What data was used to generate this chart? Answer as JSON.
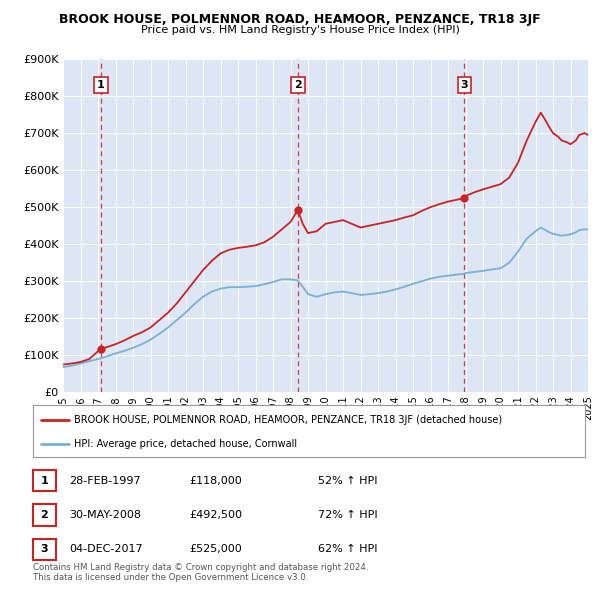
{
  "title": "BROOK HOUSE, POLMENNOR ROAD, HEAMOOR, PENZANCE, TR18 3JF",
  "subtitle": "Price paid vs. HM Land Registry's House Price Index (HPI)",
  "plot_bg_color": "#dce6f5",
  "red_line_color": "#cc2222",
  "blue_line_color": "#7ab0d4",
  "red_line_label": "BROOK HOUSE, POLMENNOR ROAD, HEAMOOR, PENZANCE, TR18 3JF (detached house)",
  "blue_line_label": "HPI: Average price, detached house, Cornwall",
  "sales": [
    {
      "num": 1,
      "date": "28-FEB-1997",
      "price": 118000,
      "price_str": "£118,000",
      "pct": "52% ↑ HPI",
      "year": 1997.17
    },
    {
      "num": 2,
      "date": "30-MAY-2008",
      "price": 492500,
      "price_str": "£492,500",
      "pct": "72% ↑ HPI",
      "year": 2008.42
    },
    {
      "num": 3,
      "date": "04-DEC-2017",
      "price": 525000,
      "price_str": "£525,000",
      "pct": "62% ↑ HPI",
      "year": 2017.92
    }
  ],
  "footer_line1": "Contains HM Land Registry data © Crown copyright and database right 2024.",
  "footer_line2": "This data is licensed under the Open Government Licence v3.0.",
  "ylim": [
    0,
    900000
  ],
  "xlim": [
    1995,
    2025
  ],
  "yticks": [
    0,
    100000,
    200000,
    300000,
    400000,
    500000,
    600000,
    700000,
    800000,
    900000
  ],
  "ytick_labels": [
    "£0",
    "£100K",
    "£200K",
    "£300K",
    "£400K",
    "£500K",
    "£600K",
    "£700K",
    "£800K",
    "£900K"
  ],
  "xticks": [
    1995,
    1996,
    1997,
    1998,
    1999,
    2000,
    2001,
    2002,
    2003,
    2004,
    2005,
    2006,
    2007,
    2008,
    2009,
    2010,
    2011,
    2012,
    2013,
    2014,
    2015,
    2016,
    2017,
    2018,
    2019,
    2020,
    2021,
    2022,
    2023,
    2024,
    2025
  ],
  "red_anchors": [
    [
      1995.0,
      75000
    ],
    [
      1995.5,
      78000
    ],
    [
      1996.0,
      82000
    ],
    [
      1996.5,
      90000
    ],
    [
      1997.17,
      118000
    ],
    [
      1997.5,
      122000
    ],
    [
      1998.0,
      130000
    ],
    [
      1998.5,
      140000
    ],
    [
      1999.0,
      152000
    ],
    [
      1999.5,
      162000
    ],
    [
      2000.0,
      175000
    ],
    [
      2000.5,
      195000
    ],
    [
      2001.0,
      215000
    ],
    [
      2001.5,
      240000
    ],
    [
      2002.0,
      270000
    ],
    [
      2002.5,
      300000
    ],
    [
      2003.0,
      330000
    ],
    [
      2003.5,
      355000
    ],
    [
      2004.0,
      375000
    ],
    [
      2004.5,
      385000
    ],
    [
      2005.0,
      390000
    ],
    [
      2005.5,
      393000
    ],
    [
      2006.0,
      397000
    ],
    [
      2006.5,
      405000
    ],
    [
      2007.0,
      420000
    ],
    [
      2007.5,
      440000
    ],
    [
      2008.0,
      460000
    ],
    [
      2008.42,
      492500
    ],
    [
      2008.7,
      455000
    ],
    [
      2009.0,
      430000
    ],
    [
      2009.5,
      435000
    ],
    [
      2010.0,
      455000
    ],
    [
      2010.5,
      460000
    ],
    [
      2011.0,
      465000
    ],
    [
      2011.5,
      455000
    ],
    [
      2012.0,
      445000
    ],
    [
      2012.5,
      450000
    ],
    [
      2013.0,
      455000
    ],
    [
      2013.5,
      460000
    ],
    [
      2014.0,
      465000
    ],
    [
      2014.5,
      472000
    ],
    [
      2015.0,
      478000
    ],
    [
      2015.5,
      490000
    ],
    [
      2016.0,
      500000
    ],
    [
      2016.5,
      508000
    ],
    [
      2017.0,
      515000
    ],
    [
      2017.5,
      520000
    ],
    [
      2017.92,
      525000
    ],
    [
      2018.0,
      530000
    ],
    [
      2018.5,
      540000
    ],
    [
      2019.0,
      548000
    ],
    [
      2019.5,
      555000
    ],
    [
      2020.0,
      562000
    ],
    [
      2020.5,
      580000
    ],
    [
      2021.0,
      620000
    ],
    [
      2021.5,
      680000
    ],
    [
      2022.0,
      730000
    ],
    [
      2022.3,
      755000
    ],
    [
      2022.5,
      740000
    ],
    [
      2022.8,
      715000
    ],
    [
      2023.0,
      700000
    ],
    [
      2023.3,
      690000
    ],
    [
      2023.5,
      680000
    ],
    [
      2023.8,
      675000
    ],
    [
      2024.0,
      670000
    ],
    [
      2024.3,
      680000
    ],
    [
      2024.5,
      695000
    ],
    [
      2024.8,
      700000
    ],
    [
      2025.0,
      695000
    ]
  ],
  "blue_anchors": [
    [
      1995.0,
      68000
    ],
    [
      1995.5,
      72000
    ],
    [
      1996.0,
      78000
    ],
    [
      1996.5,
      84000
    ],
    [
      1997.0,
      90000
    ],
    [
      1997.5,
      97000
    ],
    [
      1998.0,
      105000
    ],
    [
      1998.5,
      112000
    ],
    [
      1999.0,
      120000
    ],
    [
      1999.5,
      130000
    ],
    [
      2000.0,
      142000
    ],
    [
      2000.5,
      158000
    ],
    [
      2001.0,
      175000
    ],
    [
      2001.5,
      195000
    ],
    [
      2002.0,
      215000
    ],
    [
      2002.5,
      238000
    ],
    [
      2003.0,
      258000
    ],
    [
      2003.5,
      272000
    ],
    [
      2004.0,
      280000
    ],
    [
      2004.5,
      284000
    ],
    [
      2005.0,
      284000
    ],
    [
      2005.5,
      285000
    ],
    [
      2006.0,
      287000
    ],
    [
      2006.5,
      292000
    ],
    [
      2007.0,
      298000
    ],
    [
      2007.5,
      305000
    ],
    [
      2008.0,
      305000
    ],
    [
      2008.42,
      302000
    ],
    [
      2008.7,
      285000
    ],
    [
      2009.0,
      265000
    ],
    [
      2009.5,
      258000
    ],
    [
      2010.0,
      265000
    ],
    [
      2010.5,
      270000
    ],
    [
      2011.0,
      272000
    ],
    [
      2011.5,
      268000
    ],
    [
      2012.0,
      263000
    ],
    [
      2012.5,
      265000
    ],
    [
      2013.0,
      268000
    ],
    [
      2013.5,
      272000
    ],
    [
      2014.0,
      278000
    ],
    [
      2014.5,
      285000
    ],
    [
      2015.0,
      293000
    ],
    [
      2015.5,
      300000
    ],
    [
      2016.0,
      307000
    ],
    [
      2016.5,
      312000
    ],
    [
      2017.0,
      315000
    ],
    [
      2017.5,
      318000
    ],
    [
      2017.92,
      320000
    ],
    [
      2018.0,
      322000
    ],
    [
      2018.5,
      325000
    ],
    [
      2019.0,
      328000
    ],
    [
      2019.5,
      332000
    ],
    [
      2020.0,
      335000
    ],
    [
      2020.5,
      350000
    ],
    [
      2021.0,
      380000
    ],
    [
      2021.5,
      415000
    ],
    [
      2022.0,
      435000
    ],
    [
      2022.3,
      445000
    ],
    [
      2022.5,
      440000
    ],
    [
      2022.8,
      432000
    ],
    [
      2023.0,
      428000
    ],
    [
      2023.3,
      425000
    ],
    [
      2023.5,
      423000
    ],
    [
      2023.8,
      425000
    ],
    [
      2024.0,
      427000
    ],
    [
      2024.3,
      432000
    ],
    [
      2024.5,
      438000
    ],
    [
      2024.8,
      440000
    ],
    [
      2025.0,
      440000
    ]
  ]
}
